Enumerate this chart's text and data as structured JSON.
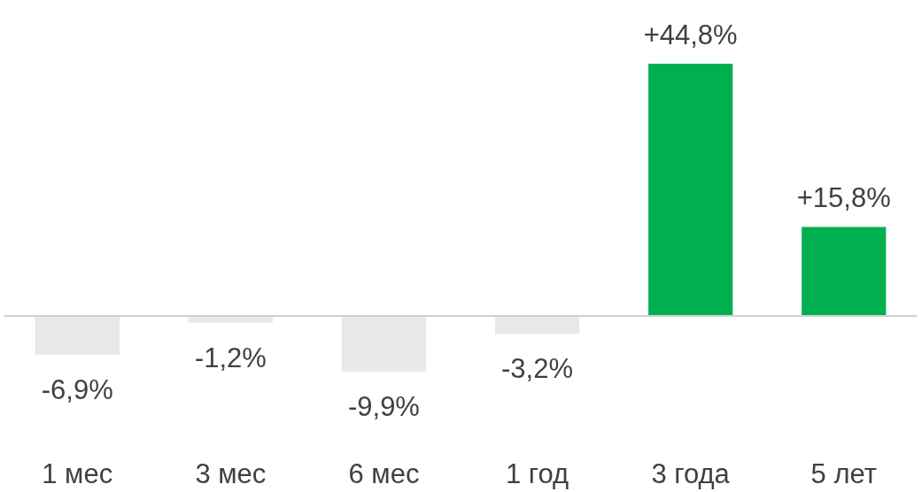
{
  "chart_data": {
    "type": "bar",
    "categories": [
      "1 мес",
      "3 мес",
      "6 мес",
      "1 год",
      "3 года",
      "5 лет"
    ],
    "values": [
      -6.9,
      -1.2,
      -9.9,
      -3.2,
      44.8,
      15.8
    ],
    "colors": [
      "#e7e8ea",
      "#e7e8ea",
      "#e7e8ea",
      "#e7e8ea",
      "#00b050",
      "#00b050"
    ],
    "value_labels": [
      "-6,9%",
      "-1,2%",
      "-9,9%",
      "-3,2%",
      "+44,8%",
      "+15,8%"
    ]
  }
}
